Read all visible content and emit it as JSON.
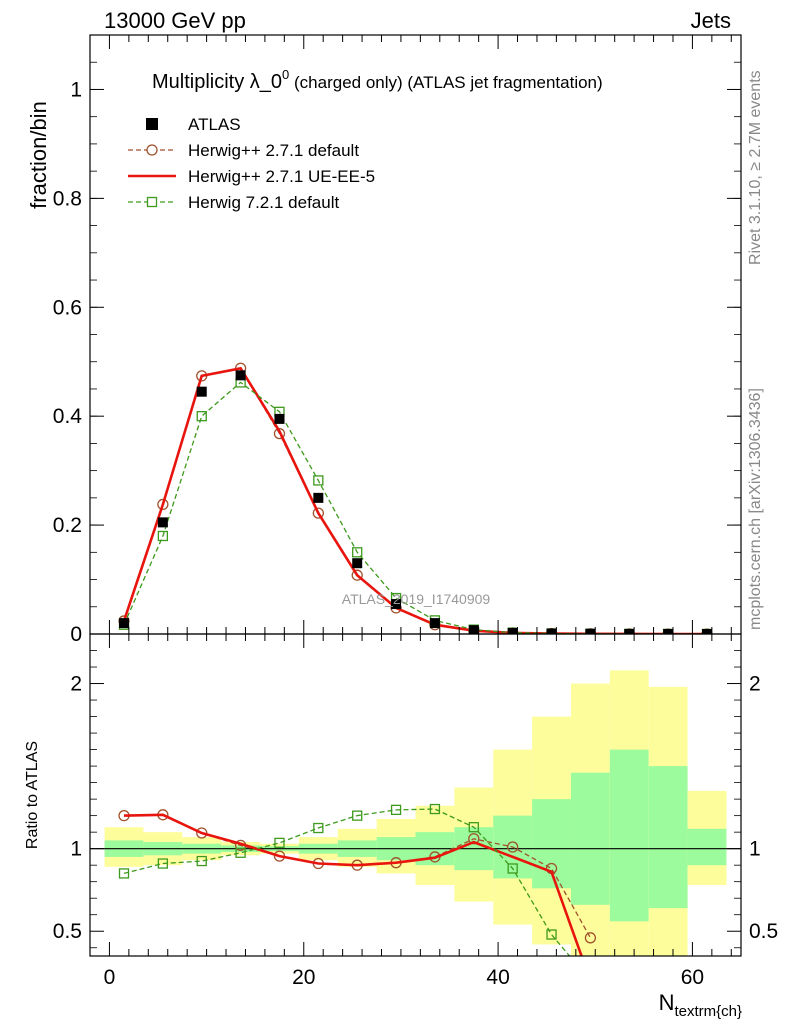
{
  "header": {
    "energy_label": "13000 GeV pp",
    "category_label": "Jets",
    "watermark": "ATLAS_2019_I1740909",
    "side_rivet": "Rivet 3.1.10, ≥ 2.7M events",
    "side_mcplots": "mcplots.cern.ch [arXiv:1306.3436]"
  },
  "colors": {
    "atlas": "#000000",
    "herwigpp_default": "#a0522d",
    "herwigpp_ueee5": "#e8140e",
    "herwig7": "#3d9a1c",
    "band_inner": "#9cfb9c",
    "band_outer": "#fdfd9c"
  },
  "chart_data": [
    {
      "type": "line",
      "title_main": "Multiplicity λ_0",
      "title_sup": "0",
      "title_rest": " (charged only) (ATLAS jet fragmentation)",
      "ylabel": "fraction/bin",
      "xlim": [
        -2,
        65
      ],
      "ylim": [
        0,
        1.1
      ],
      "y_ticks": [
        {
          "value": 0,
          "label": "0"
        },
        {
          "value": 0.2,
          "label": "0.2"
        },
        {
          "value": 0.4,
          "label": "0.4"
        },
        {
          "value": 0.6,
          "label": "0.6"
        },
        {
          "value": 0.8,
          "label": "0.8"
        },
        {
          "value": 1,
          "label": "1"
        }
      ],
      "legend_position": "top-left",
      "series": [
        {
          "name": "ATLAS",
          "style": "square-marker",
          "x": [
            1.5,
            5.5,
            9.5,
            13.5,
            17.5,
            21.5,
            25.5,
            29.5,
            33.5,
            37.5,
            41.5,
            45.5,
            49.5,
            53.5,
            57.5,
            61.5
          ],
          "values": [
            0.02,
            0.205,
            0.445,
            0.475,
            0.395,
            0.25,
            0.13,
            0.055,
            0.02,
            0.007,
            0.002,
            0.001,
            0.0005,
            0.0002,
            0.0001,
            5e-05
          ]
        },
        {
          "name": "Herwig++ 2.7.1 default",
          "style": "dashed-circle",
          "x": [
            1.5,
            5.5,
            9.5,
            13.5,
            17.5,
            21.5,
            25.5,
            29.5,
            33.5,
            37.5,
            41.5,
            45.5,
            49.5,
            53.5,
            57.5,
            61.5
          ],
          "values": [
            0.024,
            0.238,
            0.474,
            0.488,
            0.368,
            0.222,
            0.108,
            0.048,
            0.017,
            0.006,
            0.002,
            0.0008,
            0.0003,
            0.0001,
            5e-05,
            2e-05
          ]
        },
        {
          "name": "Herwig++ 2.7.1 UE-EE-5",
          "style": "solid-line",
          "x": [
            1.5,
            5.5,
            9.5,
            13.5,
            17.5,
            21.5,
            25.5,
            29.5,
            33.5,
            37.5,
            41.5,
            45.5,
            49.5,
            53.5,
            57.5,
            61.5
          ],
          "values": [
            0.024,
            0.238,
            0.474,
            0.488,
            0.372,
            0.222,
            0.108,
            0.048,
            0.017,
            0.006,
            0.002,
            0.0008,
            0.0003,
            0.0001,
            5e-05,
            2e-05
          ]
        },
        {
          "name": "Herwig 7.2.1 default",
          "style": "dashed-square",
          "x": [
            1.5,
            5.5,
            9.5,
            13.5,
            17.5,
            21.5,
            25.5,
            29.5,
            33.5,
            37.5,
            41.5,
            45.5,
            49.5,
            53.5,
            57.5,
            61.5
          ],
          "values": [
            0.017,
            0.18,
            0.4,
            0.462,
            0.408,
            0.282,
            0.15,
            0.066,
            0.025,
            0.008,
            0.0025,
            0.0008,
            0.0003,
            0.0001,
            5e-05,
            2e-05
          ]
        }
      ]
    },
    {
      "type": "line",
      "ylabel": "Ratio to ATLAS",
      "xlabel_main": "N",
      "xlabel_sub": "textrm{ch}",
      "xlim": [
        -2,
        65
      ],
      "ylim": [
        0.35,
        2.3
      ],
      "x_ticks": [
        {
          "value": 0,
          "label": "0"
        },
        {
          "value": 20,
          "label": "20"
        },
        {
          "value": 40,
          "label": "40"
        },
        {
          "value": 60,
          "label": "60"
        }
      ],
      "y_ticks": [
        {
          "value": 0.5,
          "label": "0.5"
        },
        {
          "value": 1,
          "label": "1"
        },
        {
          "value": 2,
          "label": "2"
        }
      ],
      "bands": {
        "edges": [
          -0.5,
          3.5,
          7.5,
          11.5,
          15.5,
          19.5,
          23.5,
          27.5,
          31.5,
          35.5,
          39.5,
          43.5,
          47.5,
          51.5,
          55.5,
          59.5,
          63.5
        ],
        "inner_lo": [
          0.95,
          0.96,
          0.97,
          0.98,
          0.985,
          0.97,
          0.95,
          0.93,
          0.9,
          0.87,
          0.82,
          0.76,
          0.66,
          0.56,
          0.64,
          0.9
        ],
        "inner_hi": [
          1.05,
          1.04,
          1.03,
          1.02,
          1.015,
          1.03,
          1.05,
          1.07,
          1.1,
          1.13,
          1.2,
          1.3,
          1.46,
          1.6,
          1.5,
          1.12
        ],
        "outer_lo": [
          0.89,
          0.9,
          0.93,
          0.96,
          0.97,
          0.93,
          0.89,
          0.85,
          0.78,
          0.68,
          0.54,
          0.42,
          0.35,
          0.35,
          0.35,
          0.78
        ],
        "outer_hi": [
          1.13,
          1.1,
          1.07,
          1.04,
          1.03,
          1.07,
          1.12,
          1.18,
          1.26,
          1.37,
          1.6,
          1.8,
          2.0,
          2.08,
          1.98,
          1.35
        ]
      },
      "series": [
        {
          "name": "Herwig++ 2.7.1 default",
          "style": "dashed-circle",
          "x": [
            1.5,
            5.5,
            9.5,
            13.5,
            17.5,
            21.5,
            25.5,
            29.5,
            33.5,
            37.5,
            41.5,
            45.5,
            49.5
          ],
          "values": [
            1.2,
            1.205,
            1.095,
            1.02,
            0.955,
            0.91,
            0.9,
            0.915,
            0.95,
            1.06,
            1.01,
            0.88,
            0.46
          ]
        },
        {
          "name": "Herwig++ 2.7.1 UE-EE-5",
          "style": "solid-line",
          "x": [
            1.5,
            5.5,
            9.5,
            13.5,
            17.5,
            21.5,
            25.5,
            29.5,
            33.5,
            37.5,
            41.5,
            45.5,
            49.5
          ],
          "values": [
            1.2,
            1.205,
            1.095,
            1.03,
            0.955,
            0.91,
            0.9,
            0.915,
            0.945,
            1.04,
            0.95,
            0.86,
            0.2
          ]
        },
        {
          "name": "Herwig 7.2.1 default",
          "style": "dashed-square",
          "x": [
            1.5,
            5.5,
            9.5,
            13.5,
            17.5,
            21.5,
            25.5,
            29.5,
            33.5,
            37.5,
            41.5,
            45.5,
            49.5
          ],
          "values": [
            0.85,
            0.91,
            0.925,
            0.975,
            1.035,
            1.125,
            1.2,
            1.235,
            1.24,
            1.13,
            0.88,
            0.48,
            0.2
          ]
        }
      ]
    }
  ]
}
